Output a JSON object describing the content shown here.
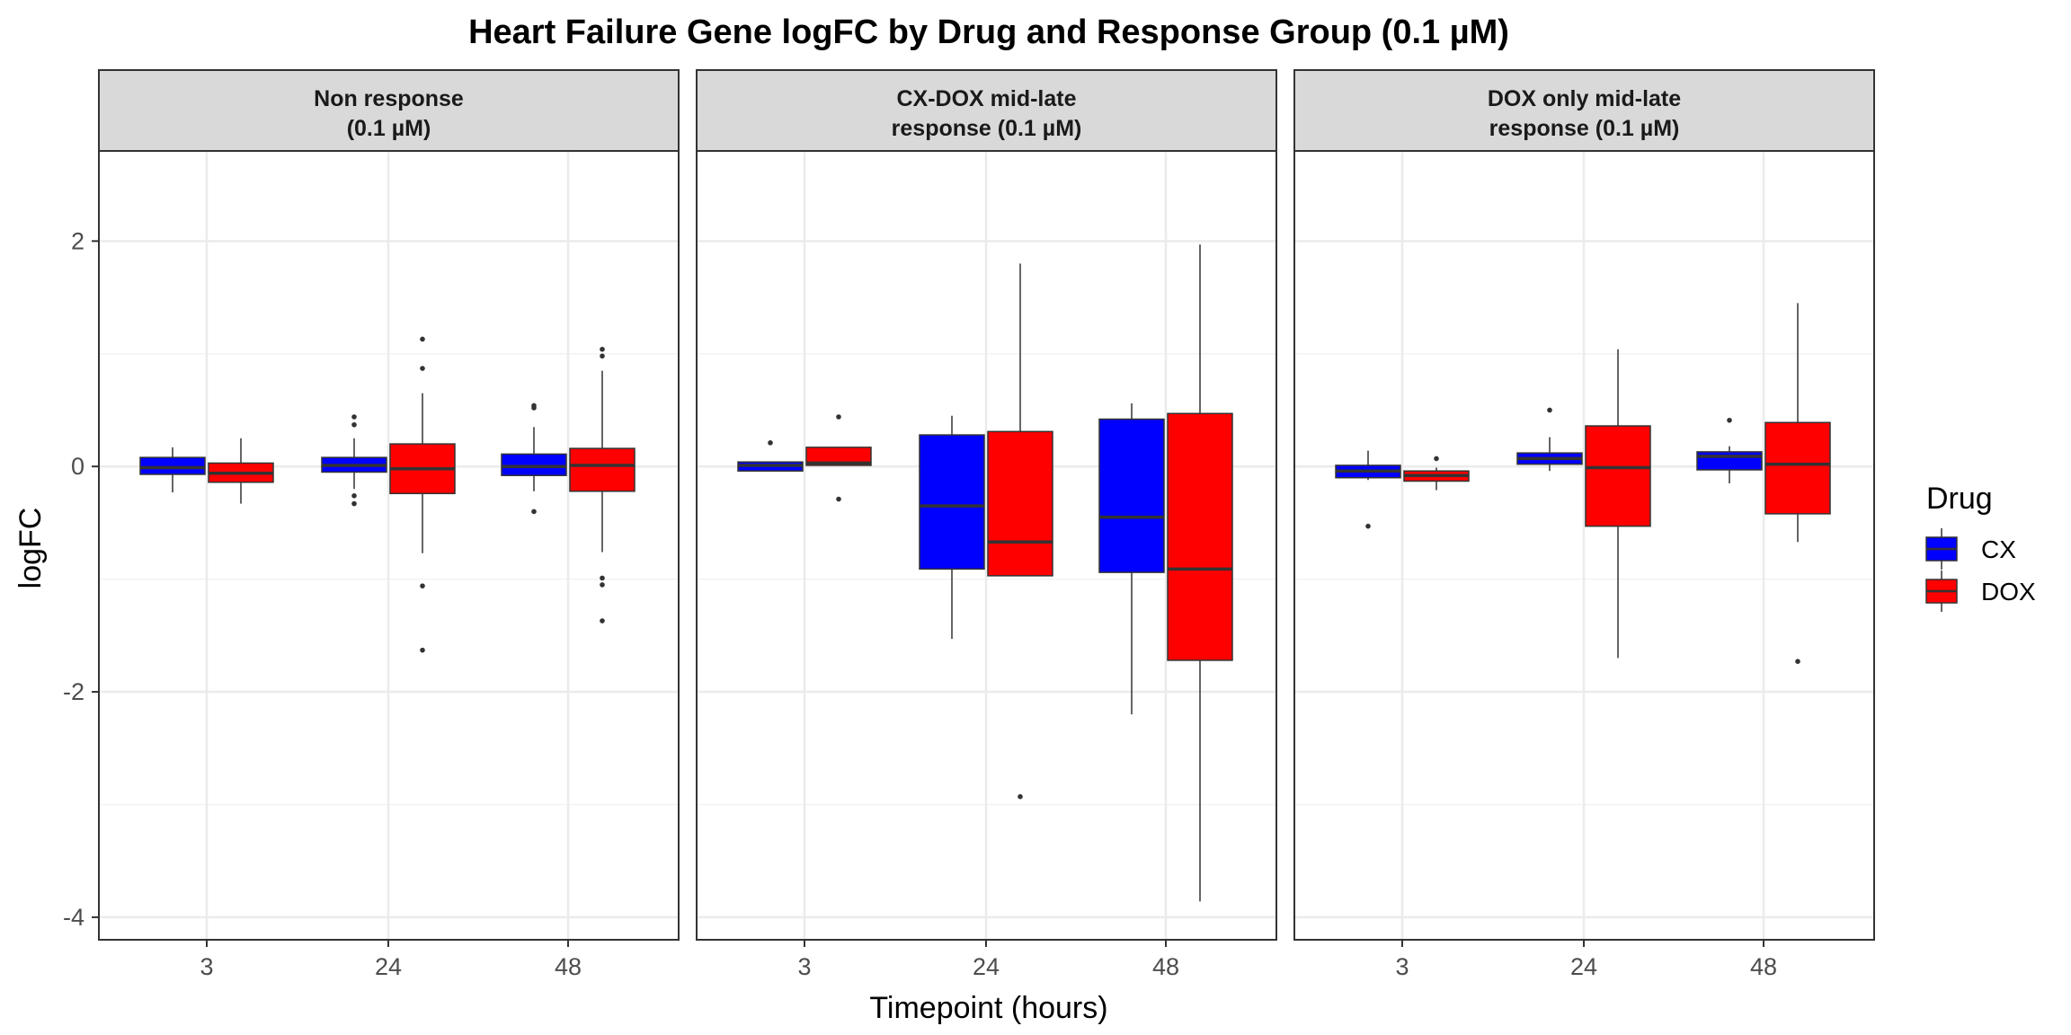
{
  "chart_data": {
    "type": "box",
    "title": "Heart Failure Gene logFC by Drug and Response Group (0.1 µM)",
    "xlabel": "Timepoint (hours)",
    "ylabel": "logFC",
    "ylim": [
      -4.2,
      2.8
    ],
    "y_ticks": [
      2,
      0,
      -2,
      -4
    ],
    "y_tick_labels": [
      "2",
      "0",
      "-2",
      "-4"
    ],
    "categories": [
      "3",
      "24",
      "48"
    ],
    "grid": true,
    "legend": {
      "title": "Drug",
      "position": "right",
      "entries": [
        {
          "label": "CX",
          "color": "#0000ff"
        },
        {
          "label": "DOX",
          "color": "#ff0000"
        }
      ]
    },
    "panels": [
      {
        "strip_line1": "Non response",
        "strip_line2": "(0.1 µM)",
        "groups": [
          {
            "timepoint": "3",
            "drug": "CX",
            "min": -0.23,
            "q1": -0.07,
            "median": -0.01,
            "q3": 0.08,
            "max": 0.17,
            "outliers": []
          },
          {
            "timepoint": "3",
            "drug": "DOX",
            "min": -0.33,
            "q1": -0.14,
            "median": -0.06,
            "q3": 0.03,
            "max": 0.25,
            "outliers": []
          },
          {
            "timepoint": "24",
            "drug": "CX",
            "min": -0.2,
            "q1": -0.05,
            "median": 0.01,
            "q3": 0.08,
            "max": 0.25,
            "outliers": [
              0.44,
              0.37,
              -0.26,
              -0.33
            ]
          },
          {
            "timepoint": "24",
            "drug": "DOX",
            "min": -0.77,
            "q1": -0.24,
            "median": -0.02,
            "q3": 0.2,
            "max": 0.65,
            "outliers": [
              1.13,
              0.87,
              -1.06,
              -1.63
            ]
          },
          {
            "timepoint": "48",
            "drug": "CX",
            "min": -0.22,
            "q1": -0.08,
            "median": 0.0,
            "q3": 0.11,
            "max": 0.35,
            "outliers": [
              0.54,
              0.52,
              -0.4
            ]
          },
          {
            "timepoint": "48",
            "drug": "DOX",
            "min": -0.76,
            "q1": -0.22,
            "median": 0.01,
            "q3": 0.16,
            "max": 0.85,
            "outliers": [
              1.04,
              0.98,
              -0.99,
              -1.05,
              -1.37
            ]
          }
        ]
      },
      {
        "strip_line1": "CX-DOX mid-late",
        "strip_line2": "response (0.1 µM)",
        "groups": [
          {
            "timepoint": "3",
            "drug": "CX",
            "min": -0.04,
            "q1": -0.04,
            "median": 0.01,
            "q3": 0.04,
            "max": 0.04,
            "outliers": [
              0.21
            ]
          },
          {
            "timepoint": "3",
            "drug": "DOX",
            "min": 0.01,
            "q1": 0.01,
            "median": 0.03,
            "q3": 0.17,
            "max": 0.17,
            "outliers": [
              0.44,
              -0.29
            ]
          },
          {
            "timepoint": "24",
            "drug": "CX",
            "min": -1.53,
            "q1": -0.91,
            "median": -0.35,
            "q3": 0.28,
            "max": 0.45,
            "outliers": []
          },
          {
            "timepoint": "24",
            "drug": "DOX",
            "min": -0.97,
            "q1": -0.97,
            "median": -0.67,
            "q3": 0.31,
            "max": 1.8,
            "outliers": [
              -2.93
            ]
          },
          {
            "timepoint": "48",
            "drug": "CX",
            "min": -2.2,
            "q1": -0.94,
            "median": -0.45,
            "q3": 0.42,
            "max": 0.56,
            "outliers": []
          },
          {
            "timepoint": "48",
            "drug": "DOX",
            "min": -3.86,
            "q1": -1.72,
            "median": -0.91,
            "q3": 0.47,
            "max": 1.97,
            "outliers": []
          }
        ]
      },
      {
        "strip_line1": "DOX only mid-late",
        "strip_line2": "response (0.1 µM)",
        "groups": [
          {
            "timepoint": "3",
            "drug": "CX",
            "min": -0.12,
            "q1": -0.1,
            "median": -0.04,
            "q3": 0.01,
            "max": 0.14,
            "outliers": [
              -0.53
            ]
          },
          {
            "timepoint": "3",
            "drug": "DOX",
            "min": -0.21,
            "q1": -0.13,
            "median": -0.08,
            "q3": -0.04,
            "max": -0.01,
            "outliers": [
              0.07
            ]
          },
          {
            "timepoint": "24",
            "drug": "CX",
            "min": -0.04,
            "q1": 0.02,
            "median": 0.07,
            "q3": 0.12,
            "max": 0.26,
            "outliers": [
              0.5
            ]
          },
          {
            "timepoint": "24",
            "drug": "DOX",
            "min": -1.7,
            "q1": -0.53,
            "median": -0.01,
            "q3": 0.36,
            "max": 1.04,
            "outliers": []
          },
          {
            "timepoint": "48",
            "drug": "CX",
            "min": -0.15,
            "q1": -0.03,
            "median": 0.09,
            "q3": 0.13,
            "max": 0.18,
            "outliers": [
              0.41
            ]
          },
          {
            "timepoint": "48",
            "drug": "DOX",
            "min": -0.67,
            "q1": -0.42,
            "median": 0.02,
            "q3": 0.39,
            "max": 1.45,
            "outliers": [
              -1.73
            ]
          }
        ]
      }
    ]
  }
}
